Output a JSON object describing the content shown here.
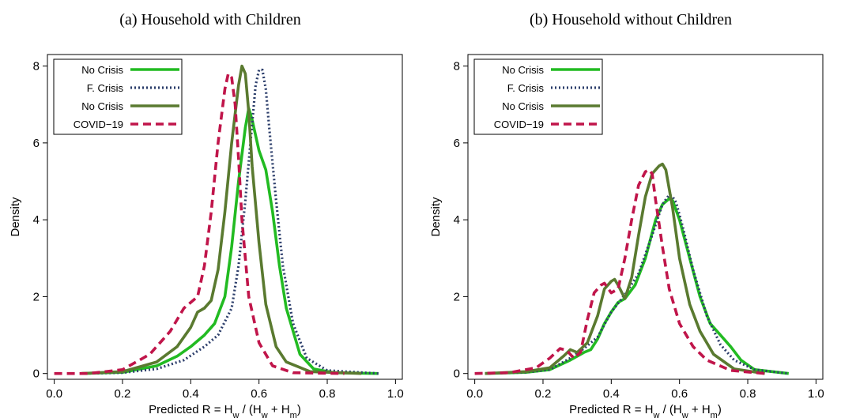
{
  "chart_data": [
    {
      "type": "line",
      "title": "(a) Household with Children",
      "xlabel": "Predicted R = H_w / (H_w + H_m)",
      "ylabel": "Density",
      "xlim": [
        -0.02,
        1.02
      ],
      "ylim": [
        -0.15,
        8.3
      ],
      "xticks": [
        "0.0",
        "0.2",
        "0.4",
        "0.6",
        "0.8",
        "1.0"
      ],
      "yticks": [
        "0",
        "2",
        "4",
        "6",
        "8"
      ],
      "legend_position": "top-left",
      "series": [
        {
          "name": "No Crisis",
          "color": "#22bb22",
          "dash": "solid",
          "x": [
            0.08,
            0.2,
            0.3,
            0.36,
            0.4,
            0.44,
            0.47,
            0.5,
            0.52,
            0.54,
            0.56,
            0.57,
            0.58,
            0.6,
            0.62,
            0.64,
            0.66,
            0.68,
            0.72,
            0.76,
            0.82,
            0.95
          ],
          "y": [
            0.0,
            0.03,
            0.2,
            0.45,
            0.7,
            1.0,
            1.3,
            2.0,
            3.3,
            5.0,
            6.4,
            6.9,
            6.6,
            5.8,
            5.3,
            4.2,
            2.8,
            1.7,
            0.5,
            0.12,
            0.02,
            0.0
          ]
        },
        {
          "name": "F. Crisis",
          "color": "#2c3e6b",
          "dash": "dotted",
          "x": [
            0.08,
            0.2,
            0.3,
            0.38,
            0.44,
            0.48,
            0.52,
            0.54,
            0.56,
            0.58,
            0.59,
            0.6,
            0.61,
            0.62,
            0.63,
            0.65,
            0.67,
            0.7,
            0.74,
            0.8,
            0.95
          ],
          "y": [
            0.0,
            0.02,
            0.12,
            0.35,
            0.7,
            1.0,
            1.7,
            2.8,
            4.5,
            6.5,
            7.5,
            7.9,
            7.9,
            7.4,
            6.4,
            4.5,
            2.8,
            1.3,
            0.4,
            0.08,
            0.0
          ]
        },
        {
          "name": "No Crisis",
          "color": "#5a7a30",
          "dash": "solid",
          "x": [
            0.08,
            0.2,
            0.3,
            0.36,
            0.4,
            0.42,
            0.44,
            0.46,
            0.48,
            0.5,
            0.52,
            0.54,
            0.55,
            0.56,
            0.57,
            0.58,
            0.6,
            0.62,
            0.65,
            0.68,
            0.75,
            0.9
          ],
          "y": [
            0.0,
            0.05,
            0.3,
            0.7,
            1.2,
            1.6,
            1.7,
            1.9,
            2.7,
            4.2,
            6.0,
            7.5,
            8.0,
            7.8,
            6.8,
            5.4,
            3.4,
            1.8,
            0.7,
            0.3,
            0.05,
            0.0
          ]
        },
        {
          "name": "COVID-19",
          "color": "#c0154a",
          "dash": "dashed",
          "x": [
            0.0,
            0.1,
            0.2,
            0.28,
            0.34,
            0.38,
            0.4,
            0.42,
            0.44,
            0.46,
            0.48,
            0.5,
            0.51,
            0.52,
            0.53,
            0.54,
            0.55,
            0.57,
            0.6,
            0.64,
            0.7,
            0.85
          ],
          "y": [
            0.0,
            0.0,
            0.1,
            0.5,
            1.1,
            1.7,
            1.85,
            2.0,
            2.8,
            4.2,
            6.0,
            7.4,
            7.8,
            7.7,
            7.0,
            5.6,
            4.0,
            2.0,
            0.8,
            0.2,
            0.02,
            0.0
          ]
        }
      ]
    },
    {
      "type": "line",
      "title": "(b) Household without Children",
      "xlabel": "Predicted R = H_w / (H_w + H_m)",
      "ylabel": "Density",
      "xlim": [
        -0.02,
        1.02
      ],
      "ylim": [
        -0.15,
        8.3
      ],
      "xticks": [
        "0.0",
        "0.2",
        "0.4",
        "0.6",
        "0.8",
        "1.0"
      ],
      "yticks": [
        "0",
        "2",
        "4",
        "6",
        "8"
      ],
      "legend_position": "top-left",
      "series": [
        {
          "name": "No Crisis",
          "color": "#22bb22",
          "dash": "solid",
          "x": [
            0.03,
            0.15,
            0.22,
            0.28,
            0.32,
            0.34,
            0.36,
            0.38,
            0.4,
            0.42,
            0.44,
            0.47,
            0.5,
            0.53,
            0.55,
            0.57,
            0.58,
            0.6,
            0.63,
            0.66,
            0.69,
            0.72,
            0.75,
            0.78,
            0.82,
            0.92
          ],
          "y": [
            0.0,
            0.03,
            0.1,
            0.35,
            0.55,
            0.62,
            0.9,
            1.3,
            1.6,
            1.85,
            1.95,
            2.3,
            3.0,
            4.0,
            4.4,
            4.55,
            4.5,
            4.0,
            3.0,
            2.0,
            1.3,
            1.0,
            0.7,
            0.35,
            0.1,
            0.0
          ]
        },
        {
          "name": "F. Crisis",
          "color": "#2c3e6b",
          "dash": "dotted",
          "x": [
            0.03,
            0.15,
            0.22,
            0.28,
            0.32,
            0.36,
            0.4,
            0.44,
            0.48,
            0.52,
            0.55,
            0.57,
            0.58,
            0.59,
            0.61,
            0.64,
            0.68,
            0.72,
            0.76,
            0.82,
            0.92
          ],
          "y": [
            0.0,
            0.03,
            0.1,
            0.4,
            0.65,
            0.95,
            1.6,
            2.05,
            2.6,
            3.6,
            4.4,
            4.65,
            4.6,
            4.45,
            3.8,
            2.7,
            1.5,
            0.75,
            0.35,
            0.1,
            0.0
          ]
        },
        {
          "name": "No Crisis",
          "color": "#5a7a30",
          "dash": "solid",
          "x": [
            0.03,
            0.15,
            0.22,
            0.26,
            0.28,
            0.3,
            0.33,
            0.36,
            0.38,
            0.4,
            0.41,
            0.42,
            0.44,
            0.46,
            0.48,
            0.5,
            0.52,
            0.54,
            0.55,
            0.56,
            0.58,
            0.6,
            0.63,
            0.66,
            0.7,
            0.76,
            0.85
          ],
          "y": [
            0.0,
            0.05,
            0.15,
            0.45,
            0.62,
            0.55,
            0.8,
            1.5,
            2.2,
            2.4,
            2.45,
            2.3,
            1.95,
            2.5,
            3.6,
            4.6,
            5.2,
            5.4,
            5.45,
            5.3,
            4.3,
            3.0,
            1.8,
            1.1,
            0.5,
            0.12,
            0.0
          ]
        },
        {
          "name": "COVID-19",
          "color": "#c0154a",
          "dash": "dashed",
          "x": [
            0.0,
            0.1,
            0.18,
            0.22,
            0.25,
            0.27,
            0.29,
            0.31,
            0.33,
            0.35,
            0.37,
            0.38,
            0.4,
            0.42,
            0.44,
            0.46,
            0.48,
            0.5,
            0.51,
            0.52,
            0.53,
            0.55,
            0.57,
            0.6,
            0.64,
            0.68,
            0.75,
            0.85
          ],
          "y": [
            0.0,
            0.02,
            0.15,
            0.4,
            0.65,
            0.6,
            0.4,
            0.55,
            1.4,
            2.1,
            2.3,
            2.35,
            2.1,
            2.2,
            3.0,
            4.0,
            4.9,
            5.25,
            5.3,
            5.2,
            4.5,
            3.3,
            2.2,
            1.3,
            0.7,
            0.35,
            0.08,
            0.0
          ]
        }
      ]
    }
  ]
}
